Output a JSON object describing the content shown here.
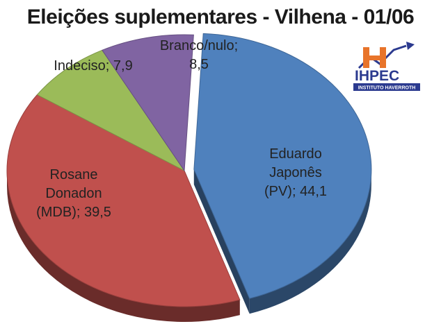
{
  "colors": {
    "eduardo": "#4f81bd",
    "rosane": "#c0504d",
    "indeciso": "#9bbb59",
    "branco": "#8064a2"
  },
  "logo": {
    "name": "IHPEC",
    "subtitle": "INSTITUTO HAVERROTH"
  },
  "chart_data": {
    "type": "pie",
    "title": "Eleições suplementares - Vilhena - 01/06",
    "slices": [
      {
        "key": "eduardo",
        "lines": [
          "Eduardo",
          "Japonês",
          "(PV); 44,1"
        ],
        "value": 44.1,
        "color": "#4f81bd",
        "exploded": true
      },
      {
        "key": "rosane",
        "lines": [
          "Rosane",
          "Donadon",
          "(MDB); 39,5"
        ],
        "value": 39.5,
        "color": "#c0504d",
        "exploded": false
      },
      {
        "key": "indeciso",
        "lines": [
          "Indeciso; 7,9"
        ],
        "value": 7.9,
        "color": "#9bbb59",
        "exploded": false
      },
      {
        "key": "branco",
        "lines": [
          "Branco/nulo;",
          "8,5"
        ],
        "value": 8.5,
        "color": "#8064a2",
        "exploded": false
      }
    ],
    "legend": "none"
  }
}
